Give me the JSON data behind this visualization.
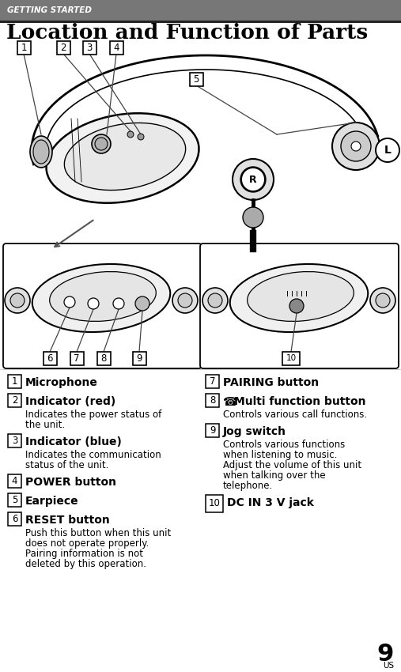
{
  "bg_color": "#ffffff",
  "header_bg": "#777777",
  "header_text": "GETTING STARTED",
  "header_text_color": "#ffffff",
  "title": "Location and Function of Parts",
  "page_number": "9",
  "page_sub": "US",
  "items_left": [
    {
      "num": "1",
      "title": "Microphone",
      "desc": ""
    },
    {
      "num": "2",
      "title": "Indicator (red)",
      "desc": "Indicates the power status of\nthe unit."
    },
    {
      "num": "3",
      "title": "Indicator (blue)",
      "desc": "Indicates the communication\nstatus of the unit."
    },
    {
      "num": "4",
      "title": "POWER button",
      "desc": ""
    },
    {
      "num": "5",
      "title": "Earpiece",
      "desc": ""
    },
    {
      "num": "6",
      "title": "RESET button",
      "desc": "Push this button when this unit\ndoes not operate properly.\nPairing information is not\ndeleted by this operation."
    }
  ],
  "items_right": [
    {
      "num": "7",
      "title": "PAIRING button",
      "desc": ""
    },
    {
      "num": "8",
      "title": "Multi function button",
      "desc": "Controls various call functions.",
      "has_phone_icon": true
    },
    {
      "num": "9",
      "title": "Jog switch",
      "desc": "Controls various functions\nwhen listening to music.\nAdjust the volume of this unit\nwhen talking over the\ntelephone."
    },
    {
      "num": "10",
      "title": "DC IN 3 V jack",
      "desc": ""
    }
  ]
}
